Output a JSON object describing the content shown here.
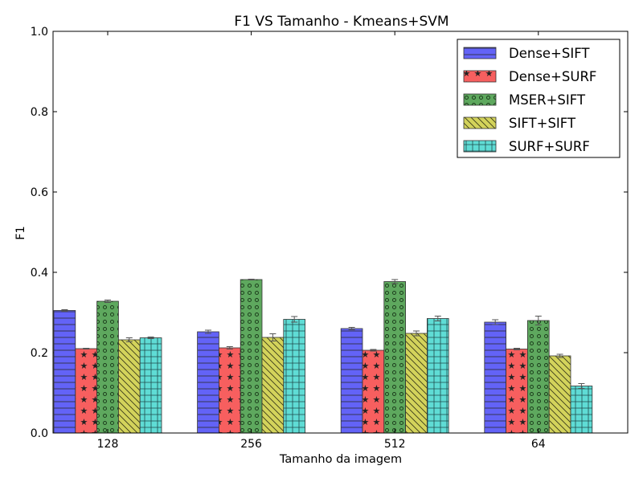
{
  "chart_data": {
    "type": "bar",
    "title": "F1 VS Tamanho - Kmeans+SVM",
    "xlabel": "Tamanho da imagem",
    "ylabel": "F1",
    "categories": [
      "128",
      "256",
      "512",
      "64"
    ],
    "ylim": [
      0.0,
      1.0
    ],
    "yticks": [
      "0.0",
      "0.2",
      "0.4",
      "0.6",
      "0.8",
      "1.0"
    ],
    "grid": false,
    "legend_position": "top-right",
    "error_bars": true,
    "series": [
      {
        "name": "Dense+SIFT",
        "color": "#6363f7",
        "hatch": "horizontal-lines",
        "values": [
          0.305,
          0.252,
          0.26,
          0.276
        ],
        "errors": [
          0.002,
          0.004,
          0.003,
          0.006
        ]
      },
      {
        "name": "Dense+SURF",
        "color": "#f75f5f",
        "hatch": "stars",
        "values": [
          0.21,
          0.212,
          0.206,
          0.209
        ],
        "errors": [
          0.001,
          0.003,
          0.002,
          0.002
        ]
      },
      {
        "name": "MSER+SIFT",
        "color": "#5ea85e",
        "hatch": "circles",
        "values": [
          0.328,
          0.382,
          0.377,
          0.28
        ],
        "errors": [
          0.003,
          0.001,
          0.005,
          0.011
        ]
      },
      {
        "name": "SIFT+SIFT",
        "color": "#d3d35b",
        "hatch": "diagonal-lines",
        "values": [
          0.232,
          0.238,
          0.248,
          0.192
        ],
        "errors": [
          0.005,
          0.009,
          0.006,
          0.004
        ]
      },
      {
        "name": "SURF+SURF",
        "color": "#5fdcd5",
        "hatch": "grid",
        "values": [
          0.237,
          0.283,
          0.285,
          0.117
        ],
        "errors": [
          0.002,
          0.007,
          0.006,
          0.006
        ]
      }
    ]
  }
}
